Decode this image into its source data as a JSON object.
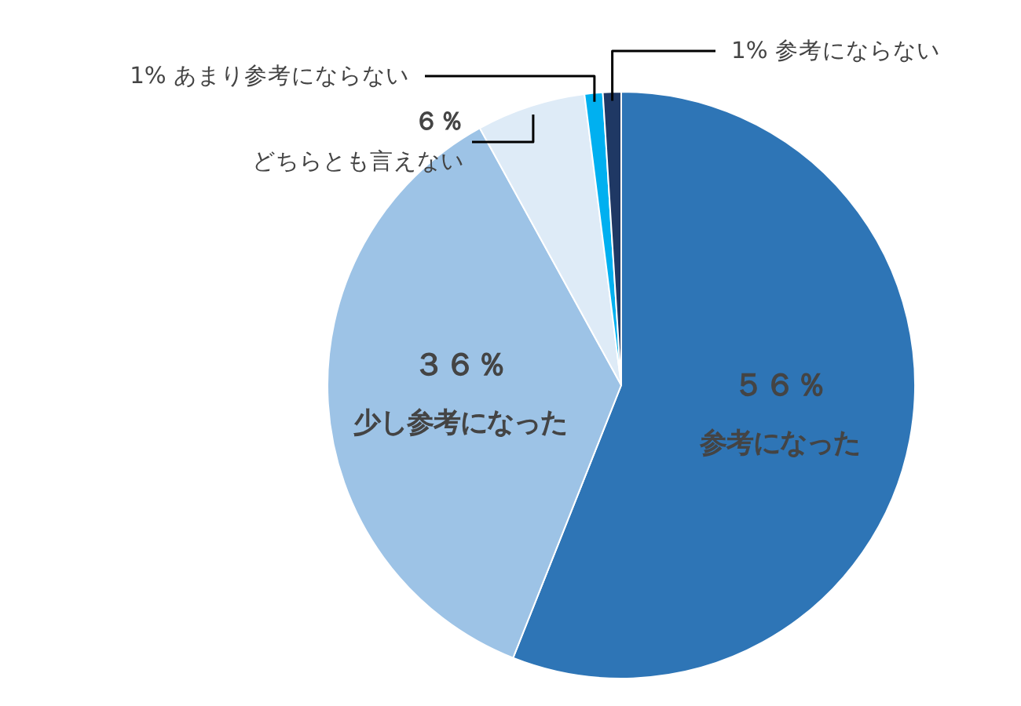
{
  "chart_data": {
    "type": "pie",
    "categories": [
      "参考になった",
      "少し参考になった",
      "どちらとも言えない",
      "あまり参考にならない",
      "参考にならない"
    ],
    "values": [
      56,
      36,
      6,
      1,
      1
    ],
    "colors": [
      "#2e75b6",
      "#9dc3e6",
      "#deebf7",
      "#00b0f0",
      "#1f3864"
    ],
    "value_labels": [
      "５６％",
      "３６％",
      "６％",
      "1%",
      "1%"
    ]
  }
}
